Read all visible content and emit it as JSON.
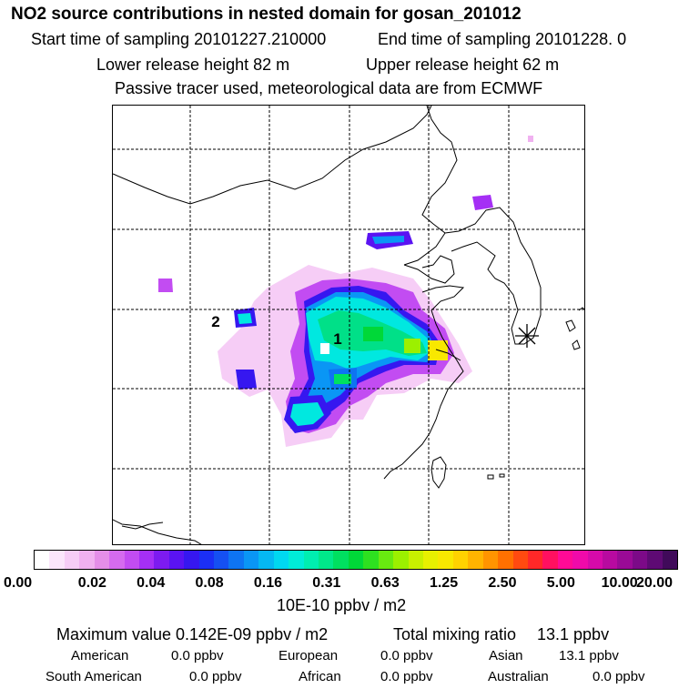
{
  "header": {
    "title": "NO2 source contributions in nested domain for gosan_201012",
    "start_time": "Start time of sampling 20101227.210000",
    "end_time": "End time of sampling 20101228.      0",
    "lower_height": "Lower release height   82 m",
    "upper_height": "Upper release height   62 m",
    "tracer_note": "Passive tracer used, meteorological data are from ECMWF"
  },
  "map": {
    "markers": [
      {
        "label": "1"
      },
      {
        "label": "2"
      }
    ],
    "receptor_icon": "asterisk-receptor-icon",
    "grid": "dashed"
  },
  "color_scale": {
    "unit": "10E-10 ppbv / m2",
    "tick_labels": [
      "0.00",
      "0.02",
      "0.04",
      "0.08",
      "0.16",
      "0.31",
      "0.63",
      "1.25",
      "2.50",
      "5.00",
      "10.00",
      "20.00"
    ],
    "colors": [
      "#ffffff",
      "#fbe6fb",
      "#f6cdf6",
      "#f0b1f0",
      "#e48ee8",
      "#d56bef",
      "#c24cf2",
      "#a52ff5",
      "#7d1bf0",
      "#5a13f2",
      "#3617f0",
      "#1b2ff5",
      "#1550f2",
      "#0e74f2",
      "#0a96f5",
      "#05b8f2",
      "#00d8f0",
      "#00ecd8",
      "#00eeb0",
      "#00e88a",
      "#00e060",
      "#00d838",
      "#2ee020",
      "#68ea10",
      "#9cf000",
      "#c8f000",
      "#e8f000",
      "#f8e800",
      "#ffd200",
      "#ffb400",
      "#ff9400",
      "#ff7000",
      "#ff4a10",
      "#ff2828",
      "#ff1060",
      "#ff0a96",
      "#f00aaa",
      "#d60aaa",
      "#b80aa0",
      "#9a0a96",
      "#7c0a88",
      "#5e0a74",
      "#400a5a"
    ]
  },
  "summary": {
    "max_value": "Maximum value  0.142E-09 ppbv / m2",
    "total_label": "Total mixing ratio",
    "total_value": "13.1 ppbv",
    "regions": [
      {
        "name": "American",
        "value": "0.0 ppbv"
      },
      {
        "name": "European",
        "value": "0.0 ppbv"
      },
      {
        "name": "Asian",
        "value": "13.1 ppbv"
      },
      {
        "name": "South American",
        "value": "0.0 ppbv"
      },
      {
        "name": "African",
        "value": "0.0 ppbv"
      },
      {
        "name": "Australian",
        "value": "0.0 ppbv"
      }
    ]
  }
}
